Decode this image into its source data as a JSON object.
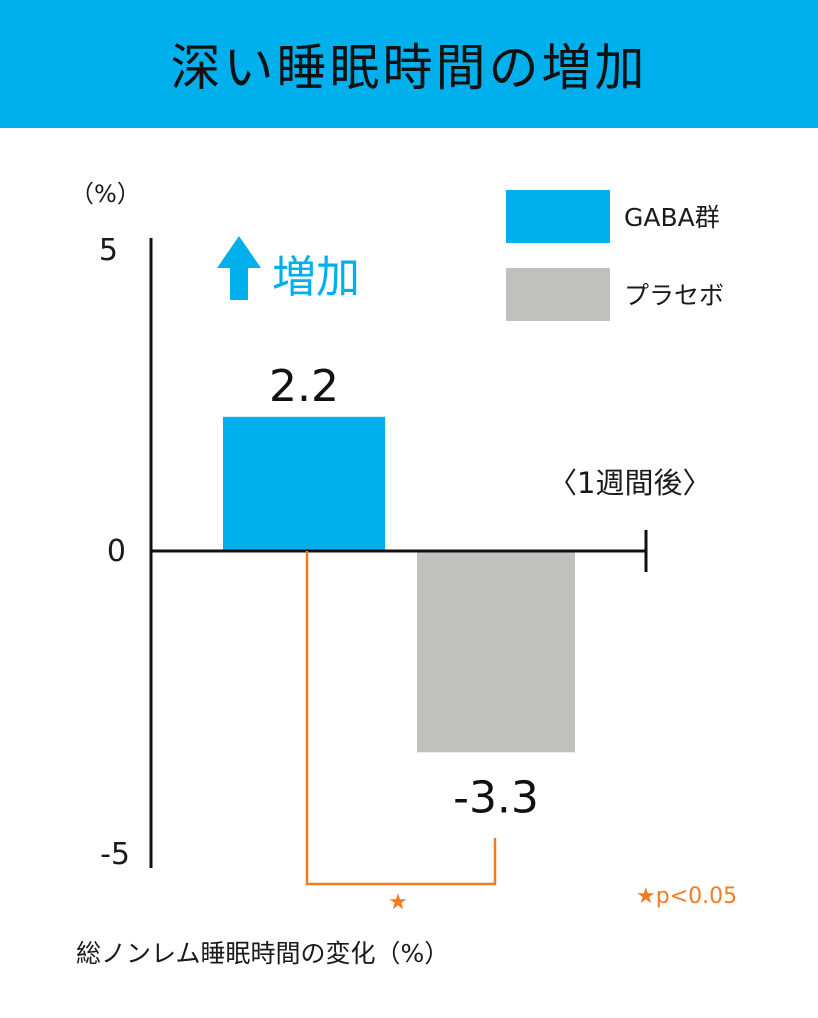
{
  "title": "深い睡眠時間の増加",
  "colors": {
    "title_bg": "#00b0ec",
    "gaba": "#00b0ec",
    "placebo": "#c0c1bf",
    "significance": "#f47b20",
    "axis": "#111111"
  },
  "callout": {
    "icon": "up-arrow-icon",
    "text": "増加"
  },
  "period_label": "〈1週間後〉",
  "significance": {
    "star": "★",
    "note_star": "★",
    "note_text": "p<0.05"
  },
  "chart_data": {
    "type": "bar",
    "title": "",
    "xlabel": "総ノンレム睡眠時間の変化（%）",
    "ylabel": "（%）",
    "ylim": [
      -5,
      5
    ],
    "yticks": [
      "5",
      "0",
      "-5"
    ],
    "categories": [
      "GABA群",
      "プラセボ"
    ],
    "series": [
      {
        "name": "GABA群",
        "values": [
          2.2,
          null
        ],
        "color": "#00b0ec"
      },
      {
        "name": "プラセボ",
        "values": [
          null,
          -3.3
        ],
        "color": "#c0c1bf"
      }
    ],
    "data_labels": [
      "2.2",
      "-3.3"
    ],
    "legend": "top-right",
    "grid": false
  }
}
